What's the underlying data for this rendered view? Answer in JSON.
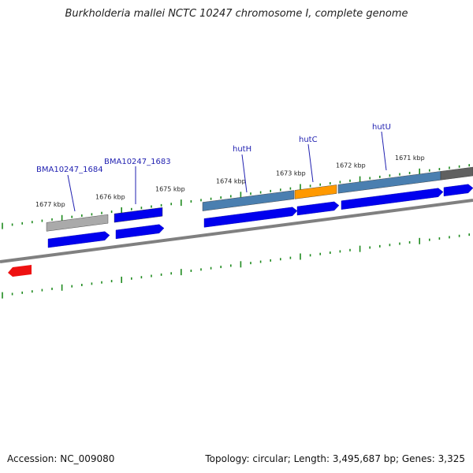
{
  "title": "Burkholderia mallei NCTC 10247 chromosome I, complete genome",
  "footer": {
    "accession": "Accession: NC_009080",
    "summary": "Topology: circular; Length: 3,495,687 bp; Genes: 3,325"
  },
  "scale": {
    "unit": "kbp",
    "tick_labels": [
      "1677 kbp",
      "1676 kbp",
      "1675 kbp",
      "1674 kbp",
      "1673 kbp",
      "1672 kbp",
      "1671 kbp"
    ]
  },
  "gene_labels": [
    "BMA10247_1684",
    "BMA10247_1683",
    "hutH",
    "hutC",
    "hutU"
  ],
  "colors": {
    "backbone": "#808080",
    "cds": "#0000ee",
    "gene_blue": "#4a7fb0",
    "gene_orange": "#ff9900",
    "gene_gray": "#aaaaaa",
    "gene_dark": "#606060",
    "rna": "#ee1111",
    "ticks": "#1e8a1e",
    "label": "#1f1fb0"
  }
}
